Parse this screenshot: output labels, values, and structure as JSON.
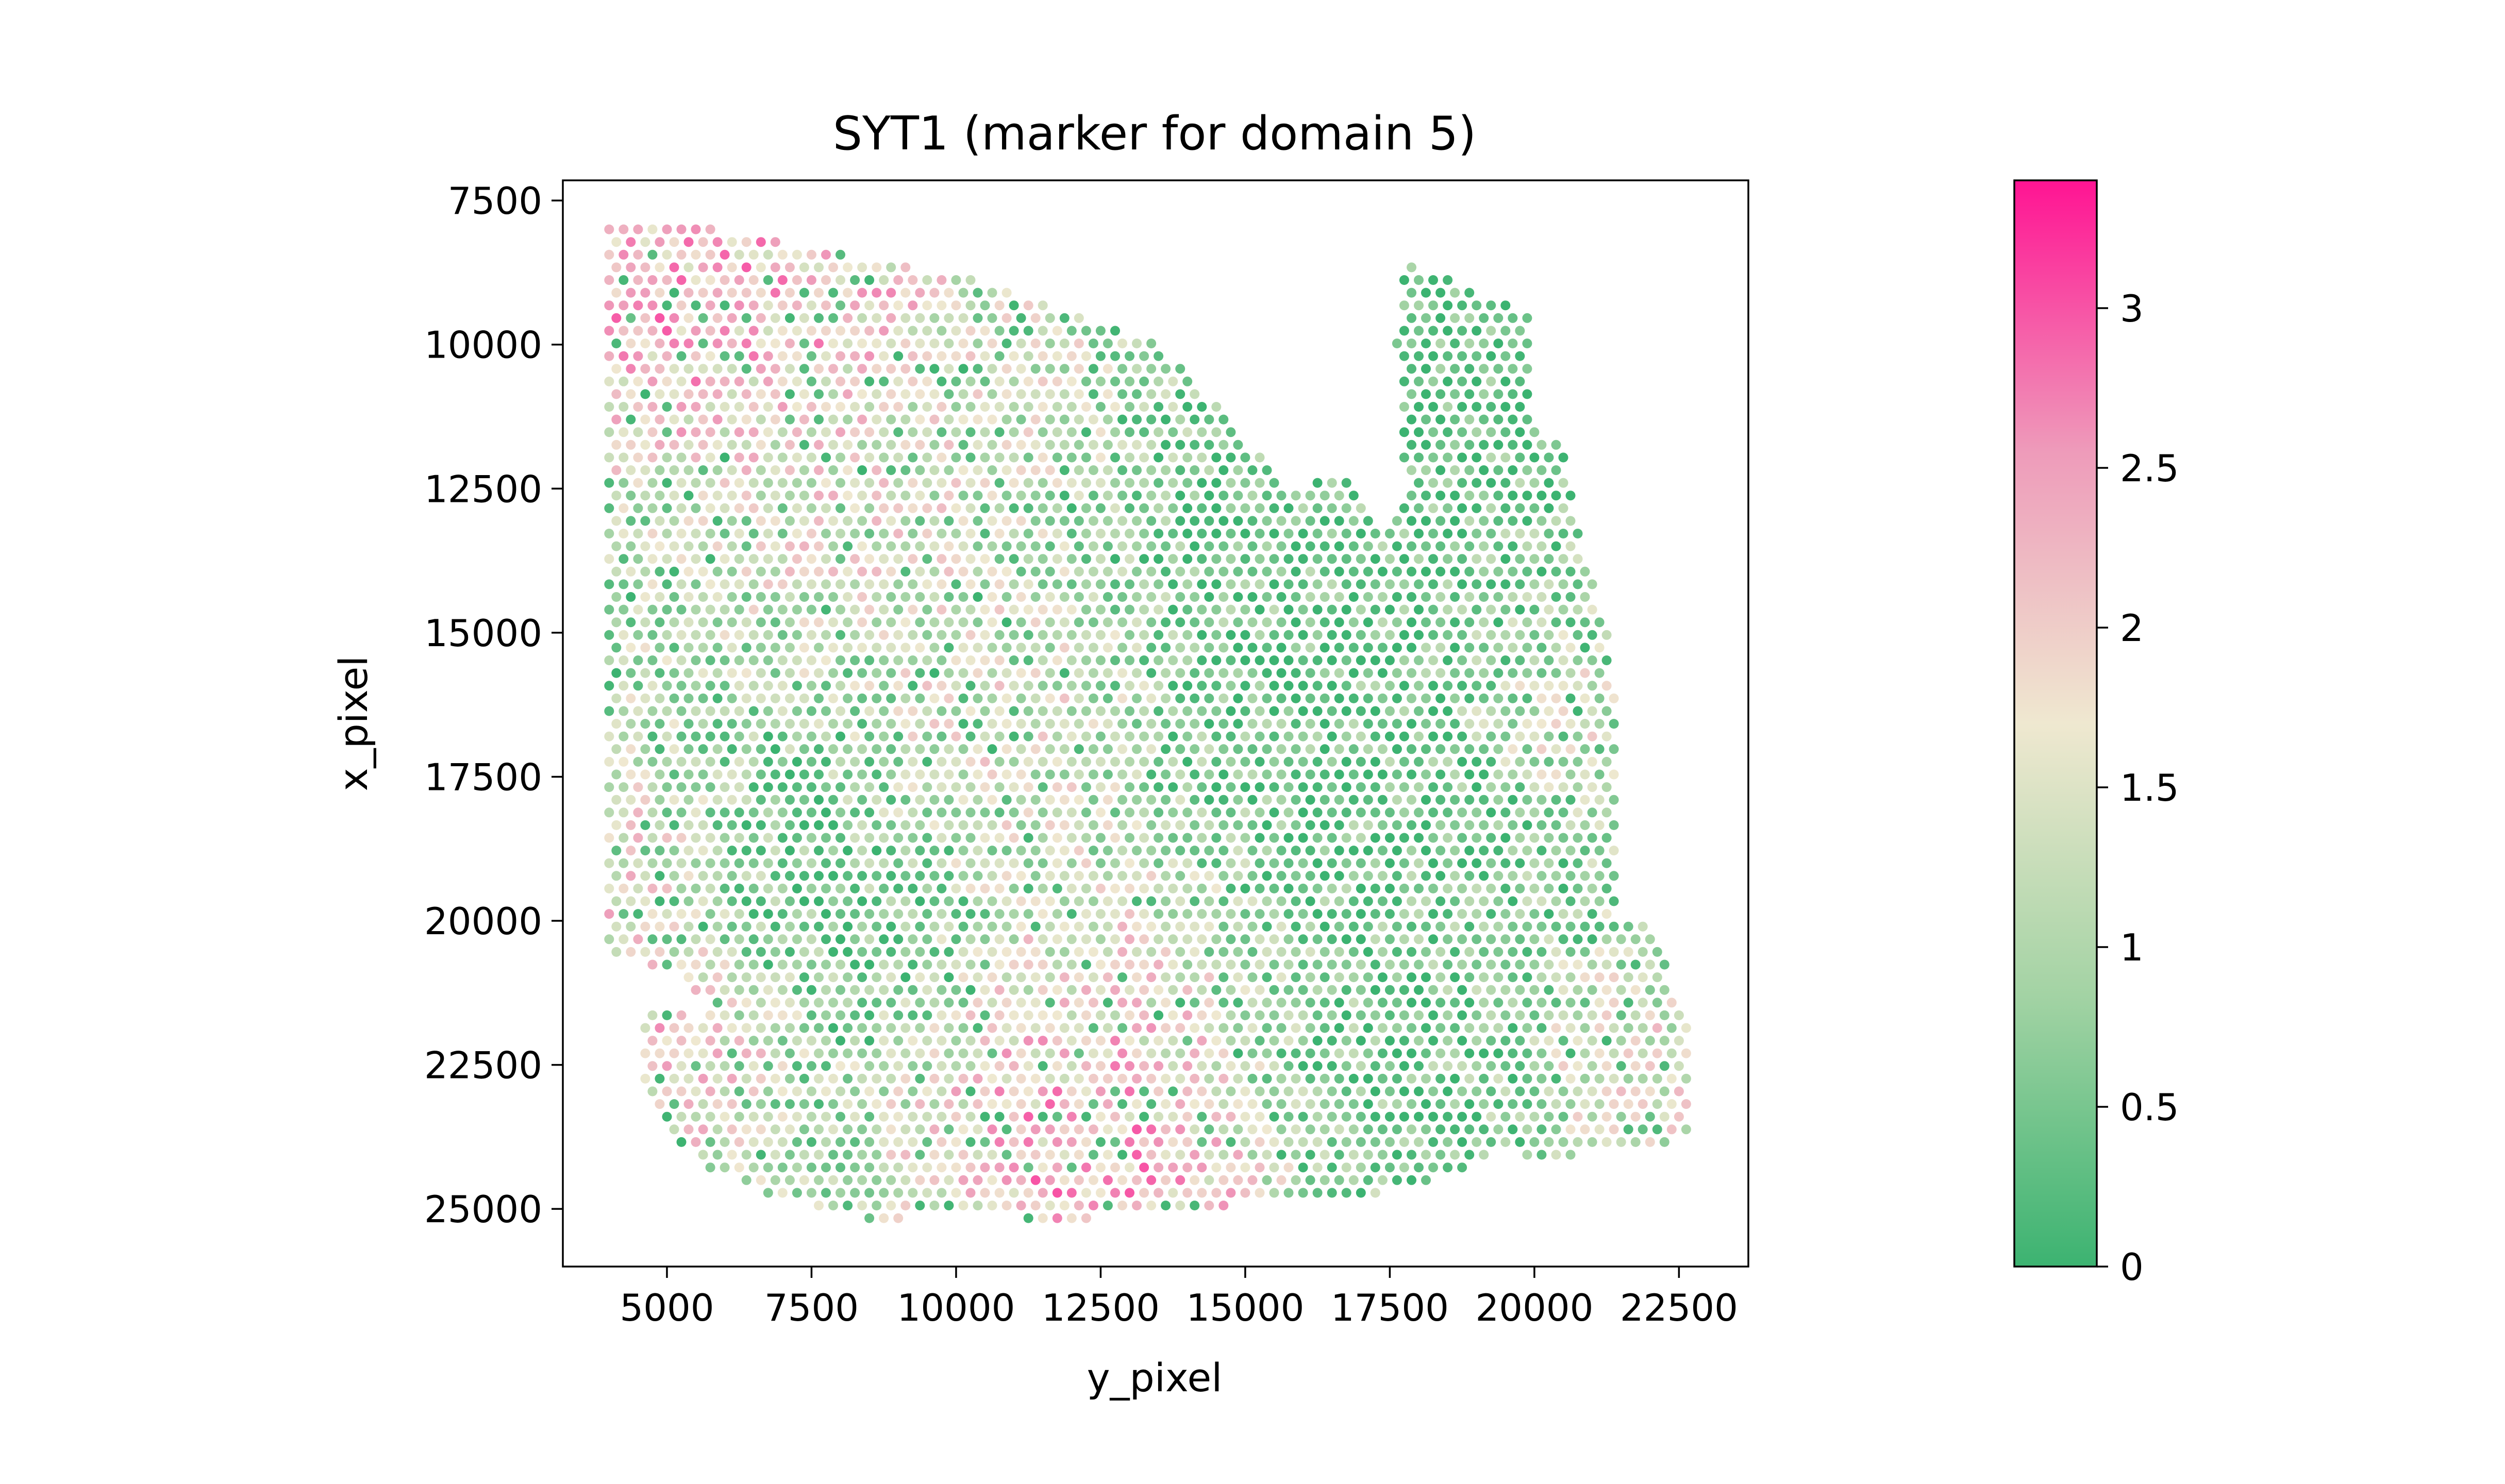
{
  "chart_data": {
    "type": "scatter",
    "title": "SYT1 (marker for domain 5)",
    "xlabel": "y_pixel",
    "ylabel": "x_pixel",
    "xlim": [
      3200,
      23700
    ],
    "ylim": [
      26000,
      7150
    ],
    "y_inverted": true,
    "x_ticks": [
      5000,
      7500,
      10000,
      12500,
      15000,
      17500,
      20000,
      22500
    ],
    "x_tick_labels": [
      "5000",
      "7500",
      "10000",
      "12500",
      "15000",
      "17500",
      "20000",
      "22500"
    ],
    "y_ticks": [
      7500,
      10000,
      12500,
      15000,
      17500,
      20000,
      22500,
      25000
    ],
    "y_tick_labels": [
      "7500",
      "10000",
      "12500",
      "15000",
      "17500",
      "20000",
      "22500",
      "25000"
    ],
    "grid": false,
    "colorbar": {
      "min": 0,
      "max": 3.4,
      "ticks": [
        0,
        0.5,
        1,
        1.5,
        2,
        2.5,
        3
      ],
      "tick_labels": [
        "0",
        "0.5",
        "1",
        "1.5",
        "2",
        "2.5",
        "3"
      ],
      "colors": [
        "#3cb371",
        "#a3d3a4",
        "#efe8d0",
        "#ee9bba",
        "#ff1493"
      ]
    },
    "spot_grid": {
      "dx": 250,
      "dy": 220,
      "x_min": 4000,
      "x_max": 22700,
      "y_min": 8000,
      "y_max": 25200
    },
    "tissue_outline": [
      [
        4000,
        8000
      ],
      [
        6000,
        8000
      ],
      [
        8000,
        8400
      ],
      [
        10000,
        8800
      ],
      [
        12000,
        9400
      ],
      [
        13500,
        10000
      ],
      [
        14700,
        11200
      ],
      [
        15700,
        12500
      ],
      [
        16800,
        12300
      ],
      [
        17200,
        13200
      ],
      [
        17800,
        12800
      ],
      [
        17600,
        10000
      ],
      [
        17700,
        8500
      ],
      [
        20000,
        9500
      ],
      [
        20000,
        11500
      ],
      [
        20500,
        11800
      ],
      [
        20700,
        13000
      ],
      [
        21000,
        14000
      ],
      [
        21200,
        14700
      ],
      [
        21400,
        16000
      ],
      [
        21500,
        17500
      ],
      [
        21500,
        20000
      ],
      [
        22000,
        20000
      ],
      [
        22400,
        21200
      ],
      [
        22700,
        21500
      ],
      [
        22700,
        23600
      ],
      [
        22200,
        24000
      ],
      [
        21000,
        24000
      ],
      [
        20500,
        24200
      ],
      [
        19500,
        24000
      ],
      [
        18300,
        24500
      ],
      [
        17000,
        24800
      ],
      [
        15500,
        24900
      ],
      [
        13500,
        25000
      ],
      [
        12000,
        25200
      ],
      [
        10000,
        25100
      ],
      [
        8600,
        25200
      ],
      [
        6800,
        24800
      ],
      [
        5500,
        24200
      ],
      [
        4600,
        23000
      ],
      [
        4600,
        21600
      ],
      [
        5000,
        21400
      ],
      [
        5500,
        21800
      ],
      [
        5800,
        21500
      ],
      [
        5000,
        20800
      ],
      [
        4300,
        20700
      ],
      [
        4000,
        20500
      ]
    ],
    "high_expression_regions": [
      {
        "cx": 5200,
        "cy": 9100,
        "r": 1600,
        "level": 2.6
      },
      {
        "cx": 7800,
        "cy": 9000,
        "r": 1300,
        "level": 2.2
      },
      {
        "cx": 4400,
        "cy": 19500,
        "r": 1200,
        "level": 2.3
      },
      {
        "cx": 5300,
        "cy": 22300,
        "r": 1000,
        "level": 2.4
      },
      {
        "cx": 12200,
        "cy": 24000,
        "r": 1500,
        "level": 2.6
      },
      {
        "cx": 13400,
        "cy": 24700,
        "r": 1100,
        "level": 2.5
      },
      {
        "cx": 8000,
        "cy": 12800,
        "r": 1200,
        "level": 1.7
      },
      {
        "cx": 11000,
        "cy": 16500,
        "r": 1400,
        "level": 1.6
      },
      {
        "cx": 13000,
        "cy": 21500,
        "r": 1400,
        "level": 1.9
      },
      {
        "cx": 20300,
        "cy": 16500,
        "r": 900,
        "level": 1.8
      },
      {
        "cx": 21600,
        "cy": 22500,
        "r": 900,
        "level": 1.7
      },
      {
        "cx": 12000,
        "cy": 11000,
        "r": 1200,
        "level": 1.5
      }
    ],
    "low_expression_regions": [
      {
        "cx": 18400,
        "cy": 10800,
        "r": 1600,
        "level": 0.05
      },
      {
        "cx": 17000,
        "cy": 16500,
        "r": 2300,
        "level": 0.15
      },
      {
        "cx": 14500,
        "cy": 12000,
        "r": 1500,
        "level": 0.2
      },
      {
        "cx": 7000,
        "cy": 19500,
        "r": 1600,
        "level": 0.3
      },
      {
        "cx": 17500,
        "cy": 22500,
        "r": 1600,
        "level": 0.3
      }
    ],
    "baseline_level": 1.0
  }
}
